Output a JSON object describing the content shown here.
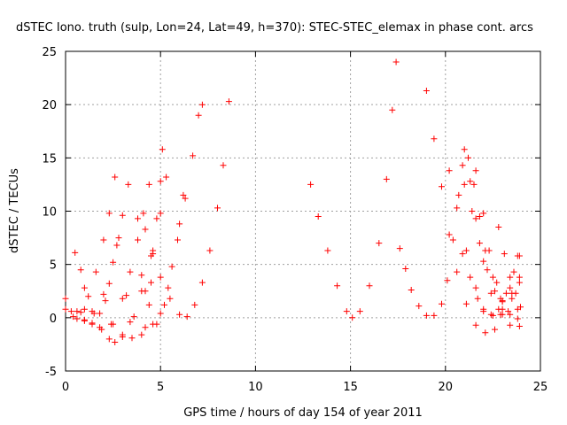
{
  "chart_data": {
    "type": "scatter",
    "title": "dSTEC Iono. truth (sulp, Lon=24, Lat=49, h=370): STEC-STEC_elemax in phase cont. arcs",
    "xlabel": "GPS time / hours of day 154 of year 2011",
    "ylabel": "dSTEC  / TECUs",
    "xlim": [
      0,
      25
    ],
    "ylim": [
      -5,
      25
    ],
    "x_ticks": [
      "0",
      "5",
      "10",
      "15",
      "20",
      "25"
    ],
    "y_ticks": [
      "-5",
      "0",
      "5",
      "10",
      "15",
      "20",
      "25"
    ],
    "grid": true,
    "marker": "+",
    "color": "#ff0000",
    "series": [
      {
        "points": [
          [
            0.0,
            1.8
          ],
          [
            0.3,
            0.6
          ],
          [
            0.6,
            -0.1
          ],
          [
            1.0,
            -0.3
          ],
          [
            1.5,
            0.4
          ],
          [
            2.0,
            2.2
          ],
          [
            2.5,
            5.2
          ],
          [
            2.8,
            7.5
          ]
        ]
      },
      {
        "points": [
          [
            0.5,
            6.1
          ],
          [
            0.8,
            4.5
          ],
          [
            1.0,
            2.8
          ],
          [
            1.4,
            0.6
          ],
          [
            1.8,
            -0.9
          ],
          [
            2.3,
            -2.0
          ],
          [
            2.6,
            -2.3
          ],
          [
            3.0,
            -1.8
          ],
          [
            3.4,
            -0.4
          ],
          [
            4.0,
            2.5
          ],
          [
            4.5,
            5.8
          ],
          [
            5.0,
            9.8
          ],
          [
            5.3,
            13.2
          ]
        ]
      },
      {
        "points": [
          [
            0.0,
            0.8
          ],
          [
            0.4,
            0.1
          ],
          [
            0.8,
            0.5
          ],
          [
            1.2,
            2.0
          ],
          [
            1.6,
            4.3
          ],
          [
            2.0,
            7.3
          ],
          [
            2.3,
            9.8
          ],
          [
            2.6,
            13.2
          ]
        ]
      },
      {
        "points": [
          [
            0.6,
            0.6
          ],
          [
            1.0,
            -0.2
          ],
          [
            1.4,
            -0.5
          ],
          [
            1.8,
            0.4
          ],
          [
            2.3,
            3.2
          ],
          [
            2.7,
            6.8
          ],
          [
            3.0,
            9.6
          ],
          [
            3.3,
            12.5
          ]
        ]
      },
      {
        "points": [
          [
            1.0,
            0.8
          ],
          [
            1.4,
            -0.6
          ],
          [
            1.9,
            -1.1
          ],
          [
            2.4,
            -0.6
          ],
          [
            3.0,
            1.8
          ],
          [
            3.4,
            4.3
          ],
          [
            3.8,
            7.3
          ],
          [
            4.1,
            9.8
          ],
          [
            4.4,
            12.5
          ]
        ]
      },
      {
        "points": [
          [
            2.1,
            1.6
          ],
          [
            2.5,
            -0.6
          ],
          [
            3.0,
            -1.6
          ],
          [
            3.5,
            -1.9
          ],
          [
            4.0,
            -1.6
          ],
          [
            4.6,
            -0.6
          ],
          [
            5.0,
            0.4
          ],
          [
            5.4,
            2.8
          ],
          [
            5.9,
            7.3
          ],
          [
            6.3,
            11.2
          ],
          [
            6.7,
            15.2
          ],
          [
            7.0,
            19.0
          ],
          [
            7.2,
            20.0
          ]
        ]
      },
      {
        "points": [
          [
            3.2,
            2.1
          ],
          [
            3.6,
            0.1
          ],
          [
            4.2,
            -0.9
          ],
          [
            4.8,
            -0.6
          ],
          [
            5.2,
            1.2
          ],
          [
            5.6,
            4.8
          ],
          [
            6.0,
            8.8
          ],
          [
            6.2,
            11.5
          ]
        ]
      },
      {
        "points": [
          [
            3.8,
            9.3
          ],
          [
            4.2,
            8.3
          ],
          [
            4.6,
            6.3
          ],
          [
            5.0,
            3.8
          ],
          [
            5.5,
            1.8
          ],
          [
            6.0,
            0.3
          ],
          [
            6.4,
            0.1
          ],
          [
            6.8,
            1.2
          ],
          [
            7.2,
            3.3
          ],
          [
            7.6,
            6.3
          ],
          [
            8.0,
            10.3
          ],
          [
            8.3,
            14.3
          ],
          [
            8.6,
            20.3
          ]
        ]
      },
      {
        "points": [
          [
            4.0,
            4.0
          ],
          [
            4.2,
            2.5
          ],
          [
            4.4,
            1.2
          ],
          [
            4.5,
            3.3
          ],
          [
            4.6,
            6.0
          ],
          [
            4.8,
            9.3
          ],
          [
            5.0,
            12.8
          ],
          [
            5.1,
            15.8
          ]
        ]
      },
      {
        "points": [
          [
            12.9,
            12.5
          ],
          [
            13.3,
            9.5
          ],
          [
            13.8,
            6.3
          ],
          [
            14.3,
            3.0
          ],
          [
            14.8,
            0.6
          ],
          [
            15.1,
            0.0
          ],
          [
            15.5,
            0.6
          ],
          [
            16.0,
            3.0
          ],
          [
            16.5,
            7.0
          ],
          [
            16.9,
            13.0
          ],
          [
            17.2,
            19.5
          ],
          [
            17.4,
            24.0
          ]
        ]
      },
      {
        "points": [
          [
            17.6,
            6.5
          ],
          [
            17.9,
            4.6
          ],
          [
            18.2,
            2.6
          ],
          [
            18.6,
            1.1
          ],
          [
            19.0,
            0.2
          ],
          [
            19.4,
            0.2
          ],
          [
            19.8,
            1.3
          ],
          [
            20.1,
            3.5
          ],
          [
            20.4,
            7.3
          ],
          [
            20.7,
            11.5
          ],
          [
            20.9,
            14.3
          ]
        ]
      },
      {
        "points": [
          [
            19.0,
            21.3
          ],
          [
            19.4,
            16.8
          ],
          [
            19.8,
            12.3
          ],
          [
            20.2,
            7.8
          ],
          [
            20.6,
            4.3
          ],
          [
            21.1,
            1.3
          ],
          [
            21.6,
            -0.7
          ],
          [
            22.1,
            -1.4
          ],
          [
            22.6,
            -1.1
          ],
          [
            23.0,
            0.3
          ],
          [
            23.4,
            2.8
          ],
          [
            23.8,
            5.8
          ]
        ]
      },
      {
        "points": [
          [
            20.2,
            13.8
          ],
          [
            20.6,
            10.3
          ],
          [
            21.1,
            6.3
          ],
          [
            21.6,
            2.8
          ],
          [
            22.0,
            0.8
          ],
          [
            22.4,
            0.3
          ],
          [
            22.8,
            0.8
          ],
          [
            23.2,
            2.3
          ],
          [
            23.6,
            4.3
          ],
          [
            23.9,
            5.8
          ]
        ]
      },
      {
        "points": [
          [
            21.0,
            15.8
          ],
          [
            21.3,
            12.8
          ],
          [
            21.6,
            9.3
          ],
          [
            22.0,
            5.3
          ],
          [
            22.4,
            2.3
          ],
          [
            22.9,
            0.3
          ],
          [
            23.4,
            -0.7
          ],
          [
            23.9,
            -0.8
          ]
        ]
      },
      {
        "points": [
          [
            21.2,
            15.0
          ],
          [
            21.5,
            12.5
          ],
          [
            21.8,
            9.5
          ],
          [
            22.1,
            6.3
          ],
          [
            22.5,
            3.8
          ],
          [
            22.9,
            1.8
          ],
          [
            23.3,
            0.6
          ],
          [
            23.8,
            0.8
          ]
        ]
      },
      {
        "points": [
          [
            21.6,
            13.8
          ],
          [
            22.0,
            9.8
          ],
          [
            22.3,
            6.3
          ],
          [
            22.7,
            3.3
          ],
          [
            23.0,
            1.6
          ],
          [
            23.4,
            0.3
          ],
          [
            23.8,
            -0.1
          ]
        ]
      },
      {
        "points": [
          [
            21.0,
            12.5
          ],
          [
            21.4,
            10.0
          ],
          [
            21.8,
            7.0
          ],
          [
            22.2,
            4.5
          ],
          [
            22.6,
            2.5
          ],
          [
            23.0,
            1.5
          ],
          [
            23.5,
            1.8
          ],
          [
            23.9,
            3.3
          ]
        ]
      },
      {
        "points": [
          [
            20.9,
            6.0
          ],
          [
            21.3,
            3.8
          ],
          [
            21.7,
            1.8
          ],
          [
            22.0,
            0.6
          ],
          [
            22.5,
            0.2
          ],
          [
            23.0,
            0.8
          ],
          [
            23.5,
            2.3
          ],
          [
            23.9,
            3.8
          ]
        ]
      },
      {
        "points": [
          [
            22.8,
            8.5
          ],
          [
            23.1,
            6.0
          ],
          [
            23.4,
            3.8
          ],
          [
            23.7,
            2.3
          ],
          [
            23.95,
            1.0
          ]
        ]
      }
    ]
  }
}
